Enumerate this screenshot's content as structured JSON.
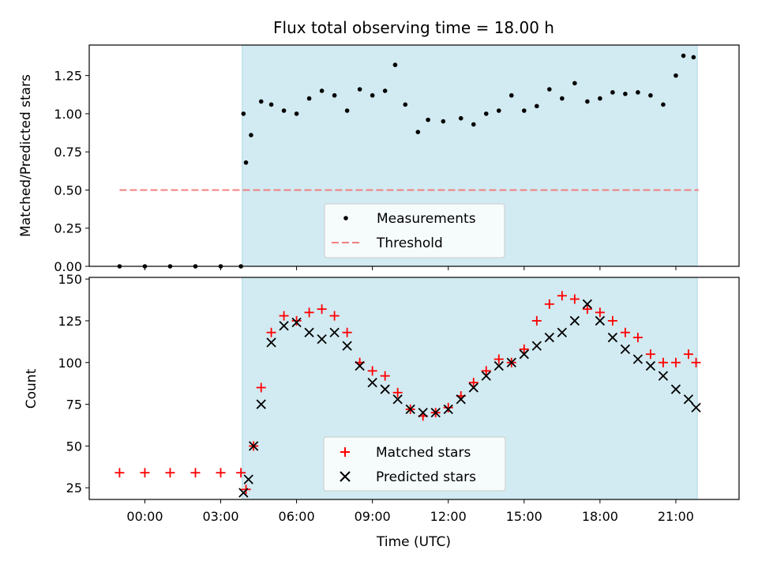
{
  "chart_data": [
    {
      "type": "scatter",
      "title": "Flux total observing time = 18.00 h",
      "xlabel": "",
      "ylabel": "Matched/Predicted stars",
      "xlim": [
        -2.2,
        23.5
      ],
      "ylim": [
        0,
        1.45
      ],
      "yticks": [
        0.0,
        0.25,
        0.5,
        0.75,
        1.0,
        1.25
      ],
      "ytick_labels": [
        "0.00",
        "0.25",
        "0.50",
        "0.75",
        "1.00",
        "1.25"
      ],
      "shaded_interval": [
        3.85,
        21.85
      ],
      "shade_color": "#add8e6",
      "legend_position": "lower center",
      "series": [
        {
          "name": "Measurements",
          "marker": "dot",
          "color": "#000000",
          "points": [
            [
              -1.0,
              0.0
            ],
            [
              0.0,
              0.0
            ],
            [
              1.0,
              0.0
            ],
            [
              2.0,
              0.0
            ],
            [
              3.0,
              0.0
            ],
            [
              3.8,
              0.0
            ],
            [
              3.9,
              1.0
            ],
            [
              4.0,
              0.68
            ],
            [
              4.2,
              0.86
            ],
            [
              4.6,
              1.08
            ],
            [
              5.0,
              1.06
            ],
            [
              5.5,
              1.02
            ],
            [
              6.0,
              1.0
            ],
            [
              6.5,
              1.1
            ],
            [
              7.0,
              1.15
            ],
            [
              7.5,
              1.12
            ],
            [
              8.0,
              1.02
            ],
            [
              8.5,
              1.16
            ],
            [
              9.0,
              1.12
            ],
            [
              9.5,
              1.15
            ],
            [
              9.9,
              1.32
            ],
            [
              10.3,
              1.06
            ],
            [
              10.8,
              0.88
            ],
            [
              11.2,
              0.96
            ],
            [
              11.8,
              0.95
            ],
            [
              12.5,
              0.97
            ],
            [
              13.0,
              0.93
            ],
            [
              13.5,
              1.0
            ],
            [
              14.0,
              1.02
            ],
            [
              14.5,
              1.12
            ],
            [
              15.0,
              1.02
            ],
            [
              15.5,
              1.05
            ],
            [
              16.0,
              1.16
            ],
            [
              16.5,
              1.1
            ],
            [
              17.0,
              1.2
            ],
            [
              17.5,
              1.08
            ],
            [
              18.0,
              1.1
            ],
            [
              18.5,
              1.14
            ],
            [
              19.0,
              1.13
            ],
            [
              19.5,
              1.14
            ],
            [
              20.0,
              1.12
            ],
            [
              20.5,
              1.06
            ],
            [
              21.0,
              1.25
            ],
            [
              21.3,
              1.38
            ],
            [
              21.7,
              1.37
            ]
          ]
        },
        {
          "name": "Threshold",
          "marker": "dashed-line",
          "color": "#f08080",
          "points": [
            [
              -1.0,
              0.5
            ],
            [
              21.9,
              0.5
            ]
          ]
        }
      ]
    },
    {
      "type": "scatter",
      "title": "",
      "xlabel": "Time (UTC)",
      "ylabel": "Count",
      "xlim": [
        -2.2,
        23.5
      ],
      "ylim": [
        18,
        151
      ],
      "yticks": [
        25,
        50,
        75,
        100,
        125,
        150
      ],
      "ytick_labels": [
        "25",
        "50",
        "75",
        "100",
        "125",
        "150"
      ],
      "xticks": [
        0,
        3,
        6,
        9,
        12,
        15,
        18,
        21
      ],
      "xtick_labels": [
        "00:00",
        "03:00",
        "06:00",
        "09:00",
        "12:00",
        "15:00",
        "18:00",
        "21:00"
      ],
      "shaded_interval": [
        3.85,
        21.85
      ],
      "shade_color": "#add8e6",
      "legend_position": "lower center",
      "series": [
        {
          "name": "Matched stars",
          "marker": "plus",
          "color": "#ff0000",
          "points": [
            [
              -1.0,
              34
            ],
            [
              0.0,
              34
            ],
            [
              1.0,
              34
            ],
            [
              2.0,
              34
            ],
            [
              3.0,
              34
            ],
            [
              3.8,
              34
            ],
            [
              4.0,
              24
            ],
            [
              4.3,
              50
            ],
            [
              4.6,
              85
            ],
            [
              5.0,
              118
            ],
            [
              5.5,
              128
            ],
            [
              6.0,
              125
            ],
            [
              6.5,
              130
            ],
            [
              7.0,
              132
            ],
            [
              7.5,
              128
            ],
            [
              8.0,
              118
            ],
            [
              8.5,
              100
            ],
            [
              9.0,
              95
            ],
            [
              9.5,
              92
            ],
            [
              10.0,
              82
            ],
            [
              10.5,
              72
            ],
            [
              11.0,
              68
            ],
            [
              11.5,
              70
            ],
            [
              12.0,
              73
            ],
            [
              12.5,
              80
            ],
            [
              13.0,
              88
            ],
            [
              13.5,
              95
            ],
            [
              14.0,
              102
            ],
            [
              14.5,
              100
            ],
            [
              15.0,
              108
            ],
            [
              15.5,
              125
            ],
            [
              16.0,
              135
            ],
            [
              16.5,
              140
            ],
            [
              17.0,
              138
            ],
            [
              17.5,
              132
            ],
            [
              18.0,
              130
            ],
            [
              18.5,
              125
            ],
            [
              19.0,
              118
            ],
            [
              19.5,
              115
            ],
            [
              20.0,
              105
            ],
            [
              20.5,
              100
            ],
            [
              21.0,
              100
            ],
            [
              21.5,
              105
            ],
            [
              21.8,
              100
            ]
          ]
        },
        {
          "name": "Predicted stars",
          "marker": "x",
          "color": "#000000",
          "points": [
            [
              3.9,
              22
            ],
            [
              4.1,
              30
            ],
            [
              4.3,
              50
            ],
            [
              4.6,
              75
            ],
            [
              5.0,
              112
            ],
            [
              5.5,
              122
            ],
            [
              6.0,
              124
            ],
            [
              6.5,
              118
            ],
            [
              7.0,
              114
            ],
            [
              7.5,
              118
            ],
            [
              8.0,
              110
            ],
            [
              8.5,
              98
            ],
            [
              9.0,
              88
            ],
            [
              9.5,
              84
            ],
            [
              10.0,
              78
            ],
            [
              10.5,
              72
            ],
            [
              11.0,
              70
            ],
            [
              11.5,
              70
            ],
            [
              12.0,
              72
            ],
            [
              12.5,
              78
            ],
            [
              13.0,
              85
            ],
            [
              13.5,
              92
            ],
            [
              14.0,
              98
            ],
            [
              14.5,
              100
            ],
            [
              15.0,
              105
            ],
            [
              15.5,
              110
            ],
            [
              16.0,
              115
            ],
            [
              16.5,
              118
            ],
            [
              17.0,
              125
            ],
            [
              17.5,
              135
            ],
            [
              18.0,
              125
            ],
            [
              18.5,
              115
            ],
            [
              19.0,
              108
            ],
            [
              19.5,
              102
            ],
            [
              20.0,
              98
            ],
            [
              20.5,
              92
            ],
            [
              21.0,
              84
            ],
            [
              21.5,
              78
            ],
            [
              21.8,
              73
            ]
          ]
        }
      ]
    }
  ]
}
